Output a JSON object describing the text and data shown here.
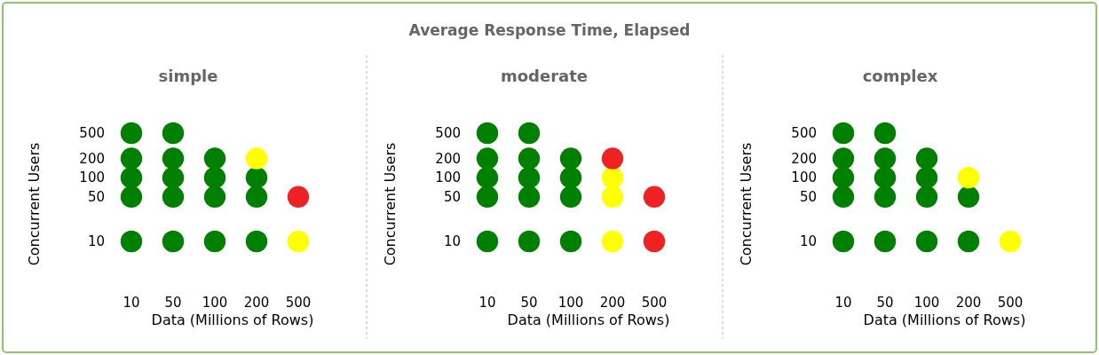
{
  "chart_data": [
    {
      "type": "scatter",
      "title": "simple",
      "xlabel": "Data (Millions of Rows)",
      "ylabel": "Concurrent Users",
      "annotations": [
        "Average Response Time, Elapsed"
      ],
      "marker": "circle",
      "log": "y",
      "categories": [
        "10",
        "50",
        "100",
        "200",
        "500"
      ],
      "ylim": [
        10,
        500
      ],
      "yticks": [
        10,
        50,
        100,
        200,
        500
      ],
      "series": [
        {
          "color": "#008000",
          "x": [
            "10",
            "10",
            "10",
            "10",
            "10",
            "50",
            "50",
            "50",
            "50",
            "50",
            "100",
            "100",
            "100",
            "100",
            "200",
            "200",
            "200"
          ],
          "values": [
            10,
            50,
            100,
            200,
            500,
            10,
            50,
            100,
            200,
            500,
            10,
            50,
            100,
            200,
            10,
            50,
            100
          ]
        },
        {
          "color": "#ffff00",
          "x": [
            "200",
            "500"
          ],
          "values": [
            200,
            10
          ]
        },
        {
          "color": "#ee2222",
          "x": [
            "500"
          ],
          "values": [
            50
          ]
        }
      ]
    },
    {
      "type": "scatter",
      "title": "moderate",
      "xlabel": "Data (Millions of Rows)",
      "ylabel": "Concurrent Users",
      "marker": "circle",
      "log": "y",
      "categories": [
        "10",
        "50",
        "100",
        "200",
        "500"
      ],
      "ylim": [
        10,
        500
      ],
      "yticks": [
        10,
        50,
        100,
        200,
        500
      ],
      "series": [
        {
          "color": "#008000",
          "x": [
            "10",
            "10",
            "10",
            "10",
            "10",
            "50",
            "50",
            "50",
            "50",
            "50",
            "100",
            "100",
            "100",
            "100"
          ],
          "values": [
            10,
            50,
            100,
            200,
            500,
            10,
            50,
            100,
            200,
            500,
            10,
            50,
            100,
            200
          ]
        },
        {
          "color": "#ffff00",
          "x": [
            "200",
            "200",
            "200"
          ],
          "values": [
            10,
            50,
            100
          ]
        },
        {
          "color": "#ee2222",
          "x": [
            "200",
            "500",
            "500"
          ],
          "values": [
            200,
            10,
            50
          ]
        }
      ]
    },
    {
      "type": "scatter",
      "title": "complex",
      "xlabel": "Data (Millions of Rows)",
      "ylabel": "Concurrent Users",
      "marker": "circle",
      "log": "y",
      "categories": [
        "10",
        "50",
        "100",
        "200",
        "500"
      ],
      "ylim": [
        10,
        500
      ],
      "yticks": [
        10,
        50,
        100,
        200,
        500
      ],
      "series": [
        {
          "color": "#008000",
          "x": [
            "10",
            "10",
            "10",
            "10",
            "10",
            "50",
            "50",
            "50",
            "50",
            "50",
            "100",
            "100",
            "100",
            "100",
            "200",
            "200"
          ],
          "values": [
            10,
            50,
            100,
            200,
            500,
            10,
            50,
            100,
            200,
            500,
            10,
            50,
            100,
            200,
            10,
            50
          ]
        },
        {
          "color": "#ffff00",
          "x": [
            "200",
            "500"
          ],
          "values": [
            100,
            10
          ]
        }
      ]
    }
  ]
}
